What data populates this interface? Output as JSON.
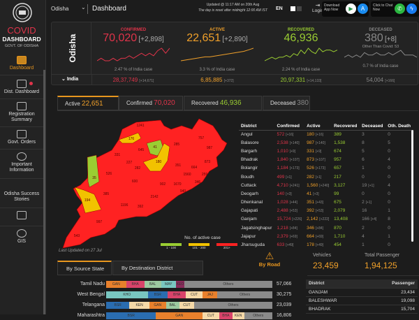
{
  "sidebar": {
    "logo": {
      "title": "COVID",
      "subtitle": "DASHBOARD",
      "org": "GOVT. OF ODISHA"
    },
    "items": [
      {
        "label": "Dashboard"
      },
      {
        "label": "Dist. Dashboard"
      },
      {
        "label": "Registration Summary"
      },
      {
        "label": "Govt. Orders"
      },
      {
        "label": "Important Information"
      },
      {
        "label": "Odisha Success Stories"
      },
      {
        "label": ""
      },
      {
        "label": "GIS"
      }
    ]
  },
  "header": {
    "state": "Odisha",
    "title": "Dashboard",
    "updated": "Updated @ 11:17 AM on 20th Aug",
    "reset_note": "The day is reset after midnight 12:00 AM IST",
    "lang": "EN",
    "login": "Login",
    "download": "Download App Now",
    "chat": "Click to Chat Now"
  },
  "summary": {
    "region": "Odisha",
    "india_label": "India",
    "confirmed": {
      "label": "CONFIRMED",
      "value": "70,020",
      "delta": "[+2,898]",
      "pct": "2.47 % of India case",
      "india": "28,37,749",
      "india_delta": "[+14,671]",
      "trend": [
        5,
        6,
        5,
        5,
        6,
        5,
        6,
        6,
        7,
        6,
        7,
        8,
        7,
        8,
        7,
        9,
        10,
        8,
        10
      ]
    },
    "active": {
      "label": "ACTIVE",
      "value": "22,651",
      "delta": "[+2,890]",
      "pct": "3.3 % of India case",
      "india": "6,85,885",
      "india_delta": "[+372]",
      "trend": [
        3,
        3.5,
        4,
        4.5,
        5,
        5.5,
        5.5,
        6,
        6.5,
        7,
        7.5,
        8,
        8.5,
        9,
        10,
        11
      ]
    },
    "recovered": {
      "label": "RECOVERED",
      "value": "46,936",
      "delta": "",
      "pct": "2.24 % of India case",
      "india": "20,97,331",
      "india_delta": "[+14,133]",
      "trend": [
        3,
        4,
        5,
        4,
        5,
        5,
        6,
        5,
        7,
        6,
        9,
        7,
        10,
        8,
        7,
        10,
        8,
        9,
        9,
        8,
        9
      ]
    },
    "deceased": {
      "label": "DECEASED",
      "value": "380",
      "delta": "[+8]",
      "other": "Other Than Covid: 53",
      "pct": "0.7 % of India case",
      "india": "54,004",
      "india_delta": "[+166]",
      "trend": [
        5,
        6,
        5,
        6,
        5,
        7,
        6,
        6,
        7,
        6,
        6,
        7,
        6,
        7,
        8,
        6,
        6,
        6,
        5
      ]
    }
  },
  "tabs": [
    {
      "label": "Active",
      "value": "22,651"
    },
    {
      "label": "Confirmed",
      "value": "70,020"
    },
    {
      "label": "Recovered",
      "value": "46,936"
    },
    {
      "label": "Deceased",
      "value": "380"
    }
  ],
  "map": {
    "labels": [
      "1241",
      "176",
      "645",
      "41",
      "285",
      "757",
      "987",
      "331",
      "227",
      "180",
      "351",
      "664",
      "873",
      "526",
      "35",
      "282",
      "1560",
      "259",
      "600",
      "902",
      "1670",
      "346",
      "940",
      "385",
      "2142",
      "194",
      "1196",
      "392",
      "997",
      "543"
    ],
    "legend_title": "No. of active case",
    "legend": [
      {
        "label": "1 - 100",
        "color": "#9acd32"
      },
      {
        "label": "101 - 200",
        "color": "#f2c200"
      },
      {
        "label": "201+",
        "color": "#f22"
      }
    ],
    "last_updated": "Last Updated on 27 Jul"
  },
  "district_table": {
    "headers": [
      "District",
      "Confirmed",
      "Active",
      "Recovered",
      "Deceased",
      "Oth. Death"
    ],
    "rows": [
      [
        "Angul",
        "572",
        "[+16]",
        "180",
        "[+16]",
        "389",
        "3",
        "",
        "0"
      ],
      [
        "Balasore",
        "2,538",
        "[+140]",
        "987",
        "[+140]",
        "1,538",
        "8",
        "",
        "5"
      ],
      [
        "Bargarh",
        "1,010",
        "[+9]",
        "331",
        "[+9]",
        "674",
        "5",
        "",
        "0"
      ],
      [
        "Bhadrak",
        "1,840",
        "[+107]",
        "873",
        "[+107]",
        "957",
        "6",
        "",
        "4"
      ],
      [
        "Bolangir",
        "1,184",
        "[+173]",
        "526",
        "[+173]",
        "657",
        "1",
        "",
        "0"
      ],
      [
        "Boudh",
        "499",
        "[+1]",
        "282",
        "[+1]",
        "217",
        "0",
        "",
        "0"
      ],
      [
        "Cuttack",
        "4,710",
        "[+241]",
        "1,560",
        "[+240]",
        "3,127",
        "19",
        "[+1]",
        "4"
      ],
      [
        "Deogarh",
        "140",
        "[+3]",
        "41",
        "[+3]",
        "99",
        "0",
        "",
        "0"
      ],
      [
        "Dhenkanal",
        "1,028",
        "[+44]",
        "351",
        "[+43]",
        "675",
        "2",
        "[+1]",
        "0"
      ],
      [
        "Gajapati",
        "2,488",
        "[+53]",
        "392",
        "[+53]",
        "2,079",
        "16",
        "",
        "1"
      ],
      [
        "Ganjam",
        "15,724",
        "[+226]",
        "2,142",
        "[+222]",
        "13,408",
        "166",
        "[+4]",
        "8"
      ],
      [
        "Jagatsinghapur",
        "1,218",
        "[+84]",
        "346",
        "[+84]",
        "870",
        "2",
        "",
        "0"
      ],
      [
        "Jajapur",
        "2,379",
        "[+69]",
        "664",
        "[+69]",
        "1,710",
        "4",
        "",
        "1"
      ],
      [
        "Jharsuguda",
        "633",
        "[+49]",
        "178",
        "[+49]",
        "454",
        "1",
        "",
        "0"
      ]
    ]
  },
  "migration": {
    "tabs": [
      "By Source State",
      "By Destination District"
    ],
    "mode": "By Road",
    "vehicles_label": "Vehicles",
    "vehicles": "23,459",
    "passenger_label": "Total Passenger",
    "passengers": "1,94,125",
    "states": [
      {
        "name": "Tamil Nadu",
        "total": "57,066",
        "segs": [
          [
            "GAN",
            0.12,
            "#e8802c"
          ],
          [
            "BHA",
            0.11,
            "#d9436a"
          ],
          [
            "BAL",
            0.1,
            "#9cc9a0"
          ],
          [
            "MAY",
            0.09,
            "#79c6c0"
          ],
          [
            "KEO",
            0.05,
            "#8a2a5a"
          ],
          [
            "Others",
            0.53,
            "#8a8a8a"
          ]
        ]
      },
      {
        "name": "West Bengal",
        "total": "30,275",
        "segs": [
          [
            "KHO",
            0.25,
            "#79c6c0"
          ],
          [
            "BSR",
            0.12,
            "#2a6db0"
          ],
          [
            "BHA",
            0.11,
            "#d9436a"
          ],
          [
            "CUT",
            0.1,
            "#f5d9a8"
          ],
          [
            "JAJ",
            0.09,
            "#e8802c"
          ],
          [
            "Others",
            0.33,
            "#8a8a8a"
          ]
        ]
      },
      {
        "name": "Telangana",
        "total": "23,039",
        "segs": [
          [
            "BSR",
            0.14,
            "#2a6db0"
          ],
          [
            "KEN",
            0.12,
            "#f5d9a8"
          ],
          [
            "GAN",
            0.1,
            "#e8802c"
          ],
          [
            "BAL",
            0.08,
            "#9cc9a0"
          ],
          [
            "CUT",
            0.09,
            "#f5d9a8"
          ],
          [
            "Others",
            0.47,
            "#8a8a8a"
          ]
        ]
      },
      {
        "name": "Maharashtra",
        "total": "16,806",
        "segs": [
          [
            "BSR",
            0.3,
            "#2a6db0"
          ],
          [
            "GAN",
            0.28,
            "#e8802c"
          ],
          [
            "CUT",
            0.1,
            "#f5d9a8"
          ],
          [
            "BHA",
            0.08,
            "#d9436a"
          ],
          [
            "KEN",
            0.07,
            "#f5d9a8"
          ],
          [
            "Others",
            0.17,
            "#8a8a8a"
          ]
        ]
      }
    ],
    "dest_headers": [
      "District",
      "Passenger"
    ],
    "dest": [
      [
        "GANJAM",
        "23,434"
      ],
      [
        "BALESHWAR",
        "19,098"
      ],
      [
        "BHADRAK",
        "15,704"
      ]
    ]
  }
}
